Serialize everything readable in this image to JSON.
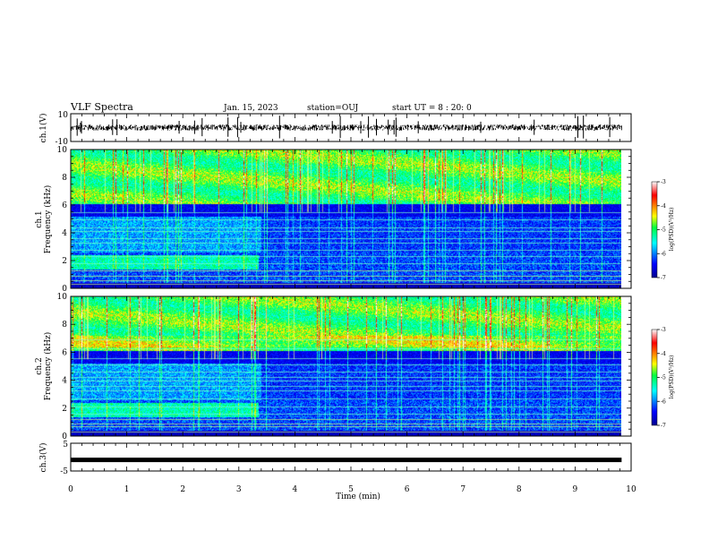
{
  "header": {
    "title": "VLF Spectra",
    "date": "Jan. 15, 2023",
    "station": "station=OUJ",
    "start": "start UT =  8 : 20: 0"
  },
  "chart_data": [
    {
      "type": "line",
      "name": "ch1-waveform",
      "ylabel": "ch.1(V)",
      "ylim": [
        -10,
        10
      ],
      "y_tick_labels": [
        "10",
        "-10"
      ],
      "xlim": [
        0,
        10
      ],
      "x_data_end": 9.83,
      "baseline": 0
    },
    {
      "type": "heatmap",
      "name": "ch1-spectrogram",
      "ylabel_line1": "ch.1",
      "ylabel_line2": "Frequency (kHz)",
      "ylim": [
        0,
        10
      ],
      "y_tick_labels": [
        "0",
        "2",
        "4",
        "6",
        "8",
        "10"
      ],
      "xlim": [
        0,
        10
      ],
      "x_data_end": 9.83,
      "colorbar": {
        "label": "log(PSD)(V²/Hz)",
        "range": [
          -7,
          -3
        ],
        "tick_labels": [
          "-3",
          "-4",
          "-5",
          "-6",
          "-7"
        ]
      }
    },
    {
      "type": "heatmap",
      "name": "ch2-spectrogram",
      "ylabel_line1": "ch.2",
      "ylabel_line2": "Frequency (kHz)",
      "ylim": [
        0,
        10
      ],
      "y_tick_labels": [
        "0",
        "2",
        "4",
        "6",
        "8",
        "10"
      ],
      "xlim": [
        0,
        10
      ],
      "x_data_end": 9.83,
      "colorbar": {
        "label": "log(PSD)(V²/Hz)",
        "range": [
          -7,
          -3
        ],
        "tick_labels": [
          "-3",
          "-4",
          "-5",
          "-6",
          "-7"
        ]
      }
    },
    {
      "type": "line",
      "name": "ch3-waveform",
      "ylabel": "ch.3(V)",
      "ylim": [
        -5,
        5
      ],
      "y_tick_labels": [
        "5",
        "-5"
      ],
      "xlim": [
        0,
        10
      ],
      "x_data_end": 9.83,
      "baseline": -1,
      "xlabel": "Time (min)",
      "x_tick_labels": [
        "0",
        "1",
        "2",
        "3",
        "4",
        "5",
        "6",
        "7",
        "8",
        "9",
        "10"
      ]
    }
  ]
}
